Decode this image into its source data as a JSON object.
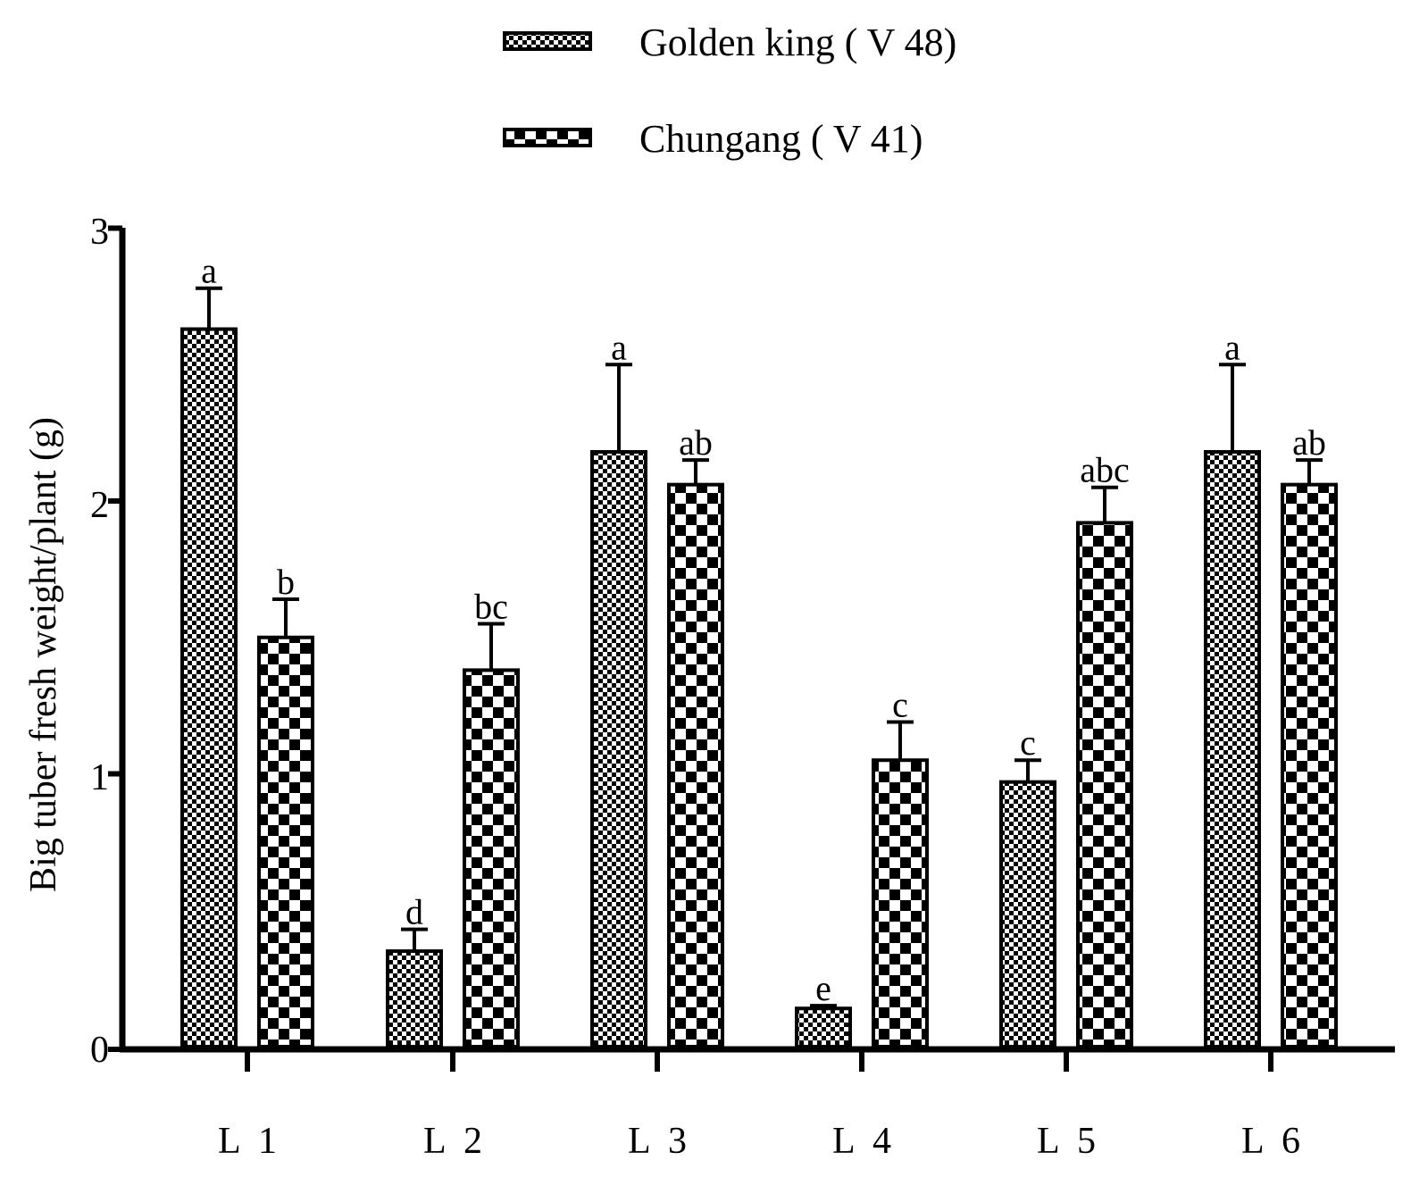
{
  "chart_data": {
    "type": "bar",
    "title": "",
    "xlabel": "",
    "ylabel": "Big tuber fresh weight/plant (g)",
    "ylim": [
      0,
      3
    ],
    "yticks": [
      "0",
      "1",
      "2",
      "3"
    ],
    "categories": [
      "L  1",
      "L  2",
      "L  3",
      "L  4",
      "L  5",
      "L  6"
    ],
    "series": [
      {
        "name": "Golden king ( V 48)",
        "pattern": "fine-check",
        "values": [
          2.63,
          0.35,
          2.18,
          0.14,
          0.97,
          2.18
        ],
        "errors": [
          0.15,
          0.08,
          0.32,
          0.01,
          0.08,
          0.32
        ],
        "letters": [
          "a",
          "d",
          "a",
          "e",
          "c",
          "a"
        ]
      },
      {
        "name": "Chungang ( V  41)",
        "pattern": "coarse-check",
        "values": [
          1.5,
          1.38,
          2.06,
          1.05,
          1.92,
          2.06
        ],
        "errors": [
          0.14,
          0.17,
          0.09,
          0.14,
          0.13,
          0.09
        ],
        "letters": [
          "b",
          "bc",
          "ab",
          "c",
          "abc",
          "ab"
        ]
      }
    ],
    "legend_position": "top-center",
    "colors": {
      "ink": "#000000",
      "background": "#ffffff"
    }
  }
}
